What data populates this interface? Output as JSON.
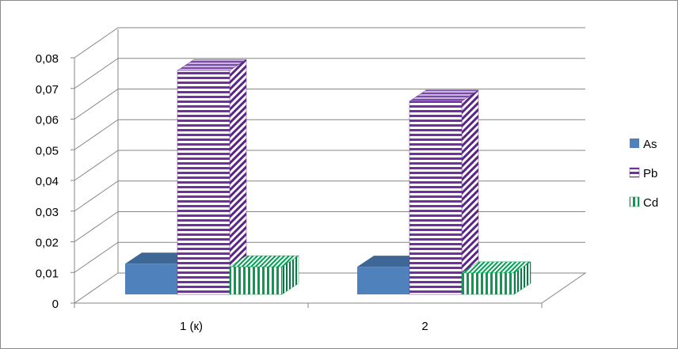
{
  "chart_data": {
    "type": "bar",
    "style": "3d-clustered-column",
    "categories": [
      "1 (к)",
      "2"
    ],
    "series": [
      {
        "name": "As",
        "values": [
          0.01,
          0.009
        ],
        "color": "#4f81bd",
        "pattern": "solid"
      },
      {
        "name": "Pb",
        "values": [
          0.073,
          0.063
        ],
        "color": "#7030a0",
        "pattern": "horizontal-stripes"
      },
      {
        "name": "Cd",
        "values": [
          0.009,
          0.007
        ],
        "color": "#00a050",
        "pattern": "vertical-stripes"
      }
    ],
    "ylim": [
      0,
      0.08
    ],
    "yticks": [
      "0",
      "0,01",
      "0,02",
      "0,03",
      "0,04",
      "0,05",
      "0,06",
      "0,07",
      "0,08"
    ],
    "grid": true,
    "legend_position": "right"
  }
}
